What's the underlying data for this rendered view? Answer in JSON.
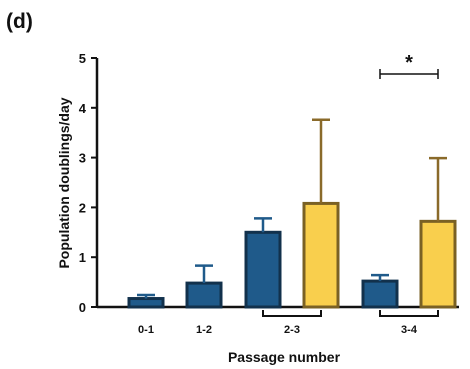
{
  "panel_label": "(d)",
  "chart_data": {
    "type": "bar",
    "xlabel": "Passage number",
    "ylabel": "Population doublings/day",
    "ylim": [
      0,
      5
    ],
    "yticks": [
      "0",
      "1",
      "2",
      "3",
      "4",
      "5"
    ],
    "categories": [
      "0-1",
      "1-2",
      "2-3",
      "3-4"
    ],
    "series": [
      {
        "color": "#1f5a8a",
        "values": [
          0.17,
          0.48,
          1.5,
          0.52
        ],
        "errors": [
          0.07,
          0.35,
          0.28,
          0.12
        ]
      },
      {
        "color": "#f9cf4d",
        "values": [
          null,
          null,
          2.08,
          1.72
        ],
        "errors": [
          null,
          null,
          1.68,
          1.27
        ]
      }
    ],
    "annotations": [
      {
        "text": "*",
        "category": "3-4"
      }
    ],
    "grid": false,
    "legend": "none"
  }
}
